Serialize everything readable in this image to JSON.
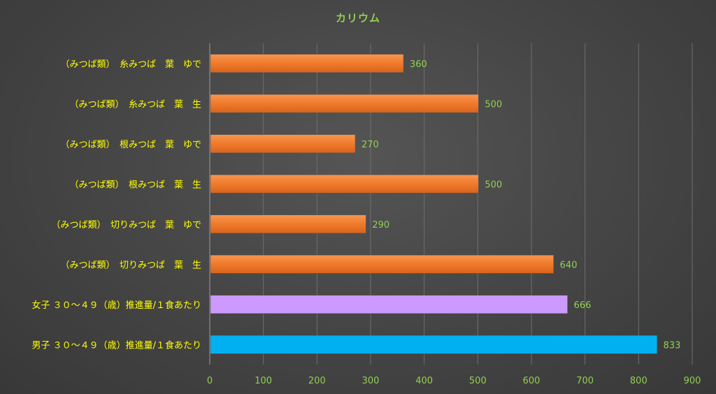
{
  "chart_data": {
    "type": "bar",
    "orientation": "horizontal",
    "title": "カリウム",
    "categories": [
      "（みつば類）　糸みつば　葉　ゆで",
      "（みつば類）　糸みつば　葉　生",
      "（みつば類）　根みつば　葉　ゆで",
      "（みつば類）　根みつば　葉　生",
      "（みつば類）　切りみつば　葉　ゆで",
      "（みつば類）　切りみつば　葉　生",
      "女子 ３０～４９（歳）推進量/１食あたり",
      "男子 ３０～４９（歳）推進量/１食あたり"
    ],
    "values": [
      360,
      500,
      270,
      500,
      290,
      640,
      666,
      833
    ],
    "bar_colors": [
      "#F07A2C",
      "#F07A2C",
      "#F07A2C",
      "#F07A2C",
      "#F07A2C",
      "#F07A2C",
      "#CC99FF",
      "#00B0F0"
    ],
    "xlim": [
      0,
      900
    ],
    "xticks": [
      0,
      100,
      200,
      300,
      400,
      500,
      600,
      700,
      800,
      900
    ],
    "grid": true,
    "legend": "none"
  },
  "colors": {
    "title": "#92D050",
    "category_label": "#FFFF00",
    "tick_label": "#92D050",
    "value_label": "#92D050",
    "grid": "#6E6E6E",
    "axis": "#9A9A9A"
  }
}
